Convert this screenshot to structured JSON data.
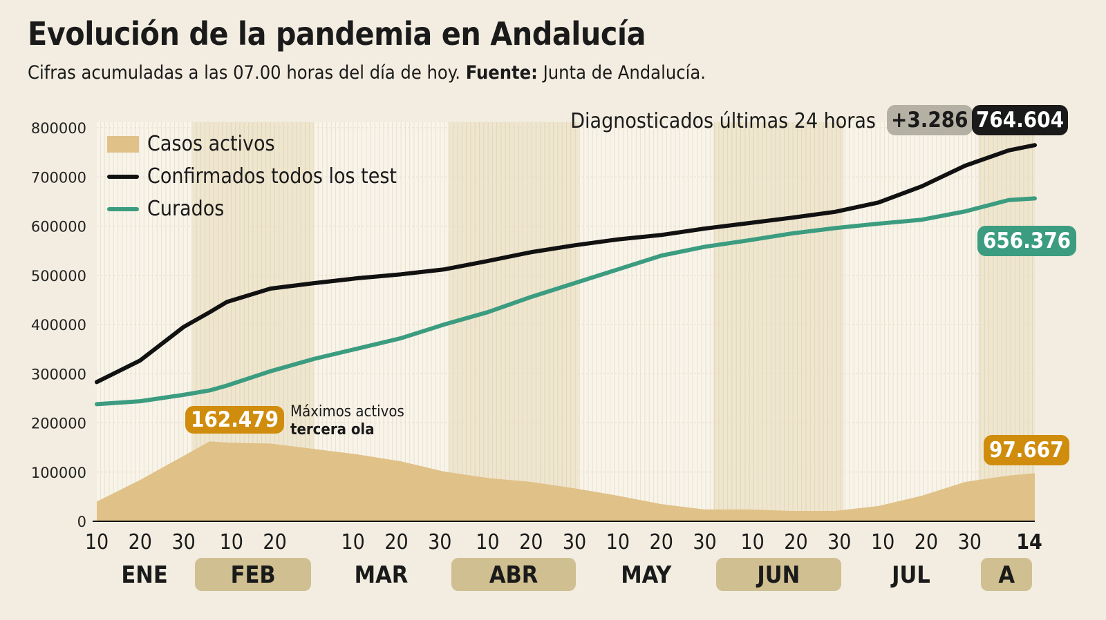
{
  "title": "Evolución de la pandemia en Andalucía",
  "subtitle": {
    "text": "Cifras acumuladas a las 07.00 horas del día de hoy.",
    "source_label": "Fuente:",
    "source": "Junta de Andalucía."
  },
  "header_stats": {
    "label": "Diagnosticados últimas 24 horas",
    "delta": "+3.286",
    "total": "764.604"
  },
  "end_labels": {
    "curados": "656.376",
    "activos": "97.667"
  },
  "annotation": {
    "value": "162.479",
    "line1": "Máximos activos",
    "line2": "tercera ola"
  },
  "colors": {
    "background": "#f2ede0",
    "activos": "#e0c187",
    "confirmados": "#111111",
    "curados": "#3b9c80",
    "activos_badge": "#d08c0c",
    "month_band": "#cfbf91",
    "delta_badge": "#b5b0a4"
  },
  "chart_data": {
    "type": "line",
    "ylim": [
      0,
      800000
    ],
    "yticks": [
      "0",
      "100000",
      "200000",
      "300000",
      "400000",
      "500000",
      "600000",
      "700000",
      "800000"
    ],
    "xticks": [
      {
        "date": "01-10",
        "label": "10"
      },
      {
        "date": "01-20",
        "label": "20"
      },
      {
        "date": "01-30",
        "label": "30"
      },
      {
        "date": "02-10",
        "label": "10"
      },
      {
        "date": "02-20",
        "label": "20"
      },
      {
        "date": "03-10",
        "label": "10"
      },
      {
        "date": "03-20",
        "label": "20"
      },
      {
        "date": "03-30",
        "label": "30"
      },
      {
        "date": "04-10",
        "label": "10"
      },
      {
        "date": "04-20",
        "label": "20"
      },
      {
        "date": "04-30",
        "label": "30"
      },
      {
        "date": "05-10",
        "label": "10"
      },
      {
        "date": "05-20",
        "label": "20"
      },
      {
        "date": "05-30",
        "label": "30"
      },
      {
        "date": "06-10",
        "label": "10"
      },
      {
        "date": "06-20",
        "label": "20"
      },
      {
        "date": "06-30",
        "label": "30"
      },
      {
        "date": "07-10",
        "label": "10"
      },
      {
        "date": "07-20",
        "label": "20"
      },
      {
        "date": "07-30",
        "label": "30"
      },
      {
        "date": "08-14",
        "label": "14"
      }
    ],
    "months": [
      {
        "label": "ENE",
        "start": "01-10",
        "end": "02-01",
        "shaded": false
      },
      {
        "label": "FEB",
        "start": "02-01",
        "end": "03-01",
        "shaded": true
      },
      {
        "label": "MAR",
        "start": "03-01",
        "end": "04-01",
        "shaded": false
      },
      {
        "label": "ABR",
        "start": "04-01",
        "end": "05-01",
        "shaded": true
      },
      {
        "label": "MAY",
        "start": "05-01",
        "end": "06-01",
        "shaded": false
      },
      {
        "label": "JUN",
        "start": "06-01",
        "end": "07-01",
        "shaded": true
      },
      {
        "label": "JUL",
        "start": "07-01",
        "end": "08-01",
        "shaded": false
      },
      {
        "label": "A",
        "start": "08-01",
        "end": "08-14",
        "shaded": true
      }
    ],
    "x": [
      "01-10",
      "01-20",
      "01-30",
      "02-05",
      "02-09",
      "02-19",
      "03-01",
      "03-11",
      "03-21",
      "03-31",
      "04-10",
      "04-20",
      "04-30",
      "05-10",
      "05-20",
      "05-30",
      "06-09",
      "06-19",
      "06-29",
      "07-09",
      "07-19",
      "07-29",
      "08-08",
      "08-14"
    ],
    "series": [
      {
        "name": "Casos activos",
        "kind": "area",
        "values": [
          40000,
          84000,
          133000,
          162479,
          160000,
          158000,
          147000,
          136000,
          122000,
          101000,
          88000,
          80000,
          67000,
          52000,
          35000,
          24000,
          24000,
          21000,
          21000,
          31000,
          52000,
          80000,
          93000,
          97667
        ]
      },
      {
        "name": "Confirmados todos los test",
        "kind": "line",
        "values": [
          283000,
          327000,
          395000,
          425000,
          446000,
          473000,
          484000,
          494000,
          502000,
          512000,
          529000,
          547000,
          561000,
          573000,
          582000,
          595000,
          606000,
          617000,
          629000,
          648000,
          681000,
          723000,
          754000,
          764604
        ]
      },
      {
        "name": "Curados",
        "kind": "line",
        "values": [
          238000,
          244000,
          257000,
          266000,
          276000,
          305000,
          330000,
          351000,
          372000,
          400000,
          425000,
          456000,
          484000,
          512000,
          540000,
          558000,
          571000,
          585000,
          596000,
          605000,
          613000,
          630000,
          653000,
          656376
        ]
      }
    ]
  }
}
